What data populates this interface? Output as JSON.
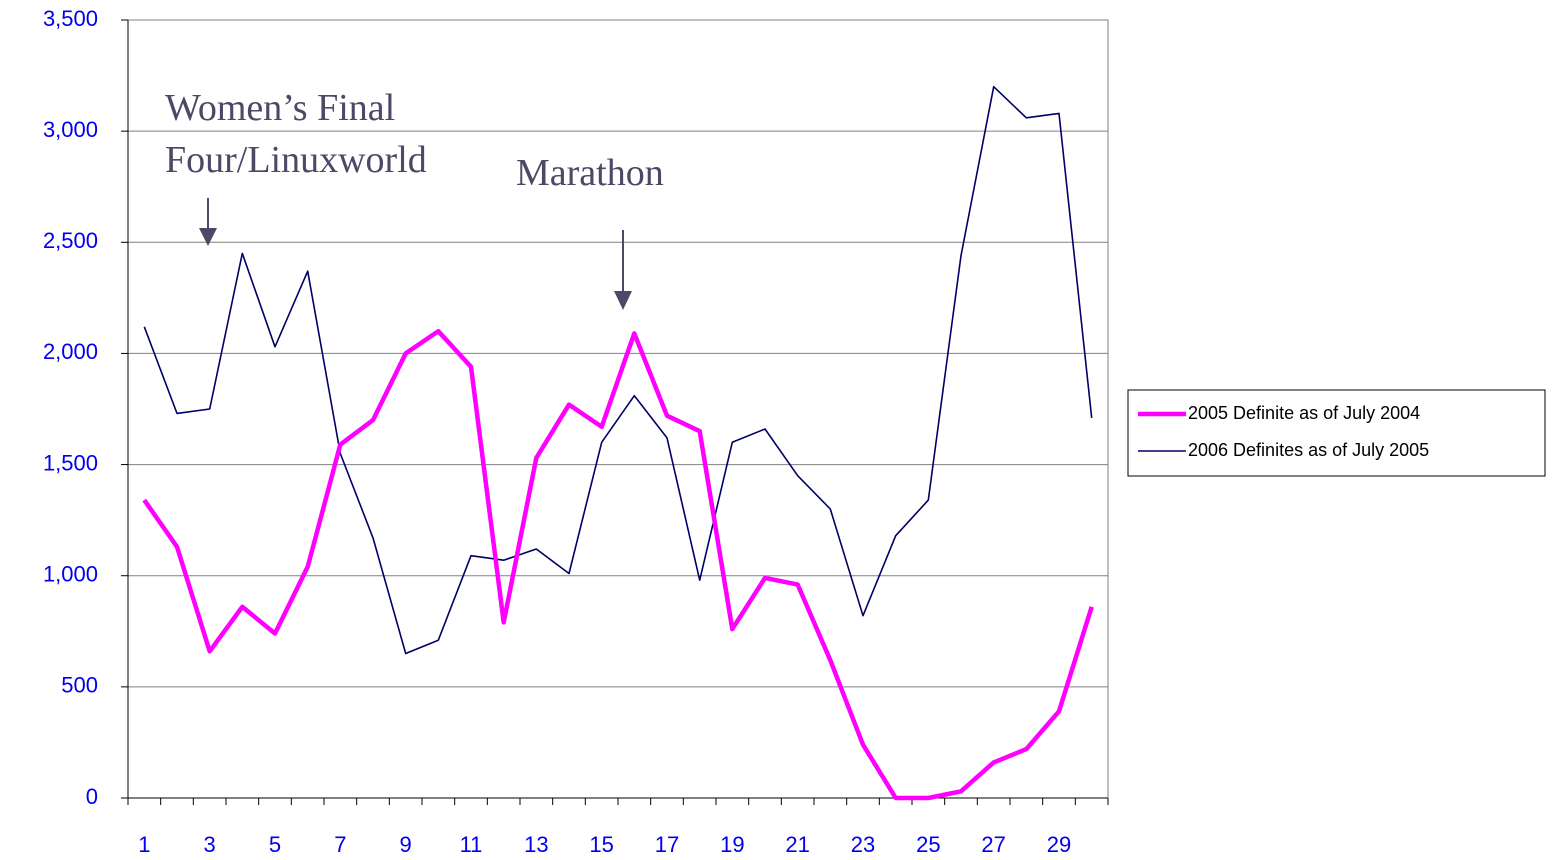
{
  "chart_data": {
    "type": "line",
    "categories": [
      "1",
      null,
      "3",
      null,
      "5",
      null,
      "7",
      null,
      "9",
      null,
      "11",
      null,
      "13",
      null,
      "15",
      null,
      "17",
      null,
      "19",
      null,
      "21",
      null,
      "23",
      null,
      "25",
      null,
      "27",
      null,
      "29",
      null
    ],
    "series": [
      {
        "name": "2005 Definite as of July 2004",
        "color": "#ff00ff",
        "values": [
          1340,
          1130,
          660,
          860,
          740,
          1040,
          1590,
          1700,
          2000,
          2100,
          1940,
          790,
          1530,
          1770,
          1670,
          2090,
          1720,
          1650,
          760,
          990,
          960,
          620,
          240,
          0,
          0,
          30,
          160,
          220,
          390,
          860
        ]
      },
      {
        "name": "2006 Definites as of July 2005",
        "color": "#000066",
        "values": [
          2120,
          1730,
          1750,
          2450,
          2030,
          2370,
          1550,
          1170,
          650,
          710,
          1090,
          1070,
          1120,
          1010,
          1600,
          1810,
          1620,
          980,
          1600,
          1660,
          1450,
          1300,
          820,
          1180,
          1340,
          2440,
          3200,
          3060,
          3080,
          1710
        ]
      }
    ],
    "ylim": [
      0,
      3500
    ],
    "yticks": [
      0,
      {
        "value": 500,
        "label": "500"
      },
      {
        "value": 1000,
        "label": "1,000"
      },
      {
        "value": 1500,
        "label": "1,500"
      },
      {
        "value": 2000,
        "label": "2,000"
      },
      {
        "value": 2500,
        "label": "2,500"
      },
      {
        "value": 3000,
        "label": "3,000"
      },
      {
        "value": 3500,
        "label": "3,500"
      }
    ],
    "grid": true,
    "legend": "right",
    "annotations": [
      {
        "text": [
          "Women’s Final",
          "Four/Linuxworld"
        ]
      },
      {
        "text": [
          "Marathon"
        ]
      }
    ]
  }
}
